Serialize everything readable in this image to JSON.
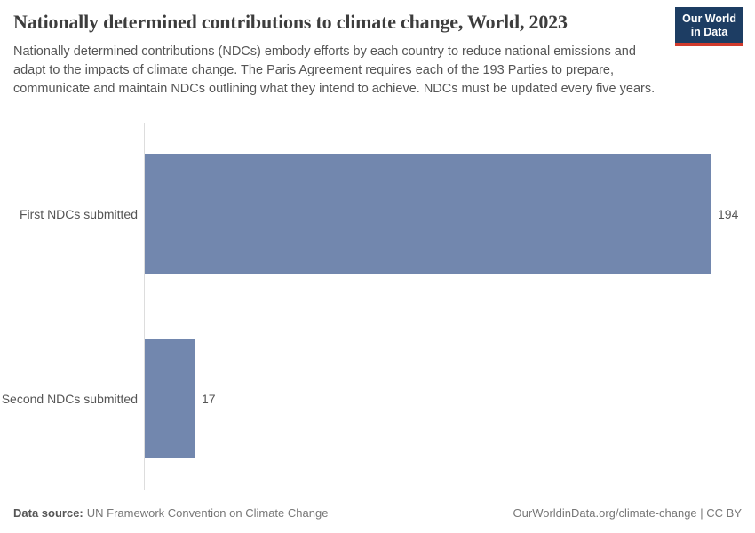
{
  "header": {
    "title": "Nationally determined contributions to climate change, World, 2023",
    "subtitle": "Nationally determined contributions (NDCs) embody efforts by each country to reduce national emissions and adapt to the impacts of climate change. The Paris Agreement requires each of the 193 Parties to prepare, communicate and maintain NDCs outlining what they intend to achieve. NDCs must be updated every five years.",
    "logo": {
      "line1": "Our World",
      "line2": "in Data",
      "background": "#1d3d63",
      "accent": "#d13b2d"
    }
  },
  "chart_data": {
    "type": "bar",
    "orientation": "horizontal",
    "title": "Nationally determined contributions to climate change, World, 2023",
    "categories": [
      "First NDCs submitted",
      "Second NDCs submitted"
    ],
    "values": [
      194,
      17
    ],
    "xlim": [
      0,
      194
    ],
    "bar_color": "#7287ae",
    "axis_color": "#dddddd",
    "grid": false,
    "legend": "none"
  },
  "footer": {
    "source_label": "Data source:",
    "source_value": "UN Framework Convention on Climate Change",
    "attribution": "OurWorldinData.org/climate-change | CC BY"
  }
}
